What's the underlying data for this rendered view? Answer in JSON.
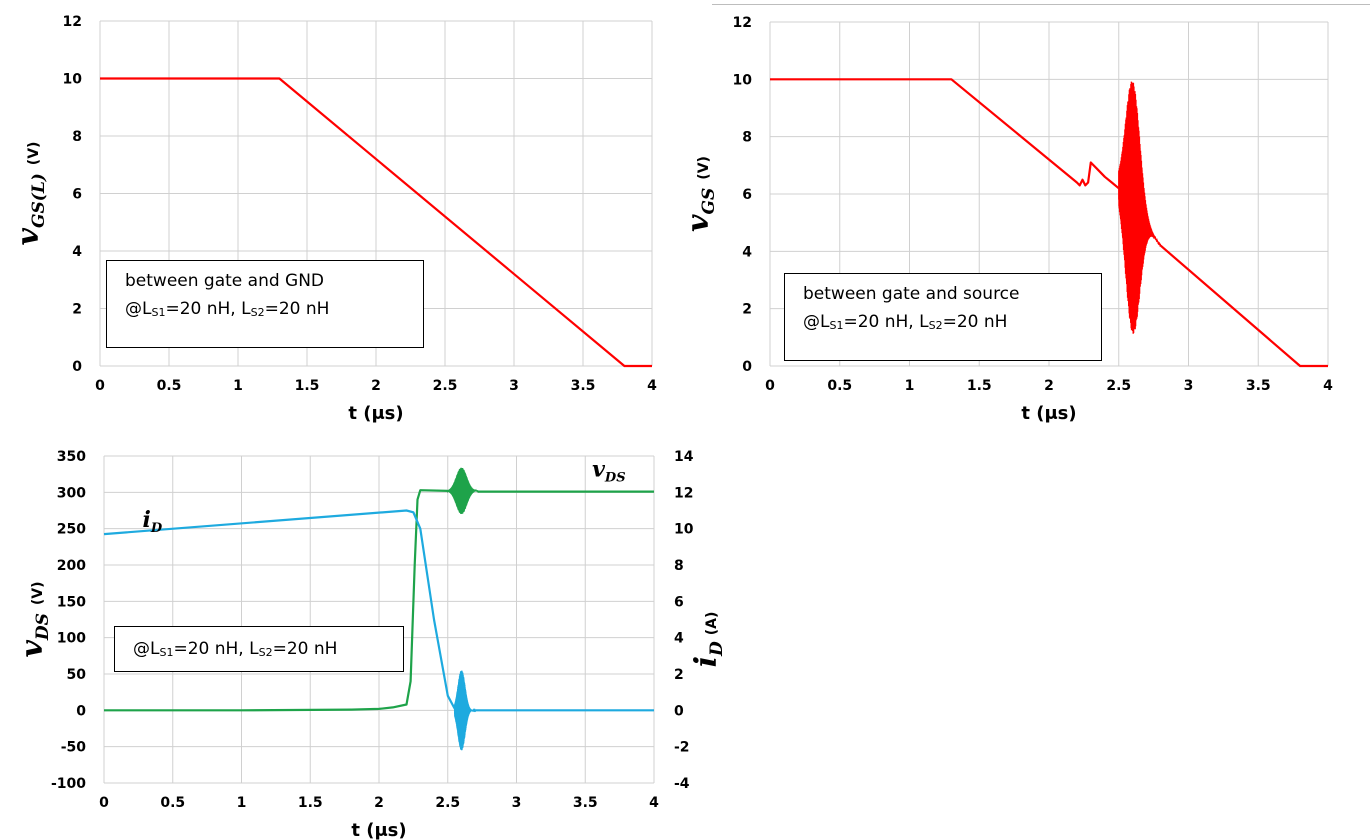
{
  "chart_data": [
    {
      "id": "vgs_l",
      "type": "line",
      "xlabel": "t (μs)",
      "ylabel": {
        "symbol": "v",
        "subscript": "GS(L)",
        "unit": "(V)"
      },
      "xlim": [
        0,
        4
      ],
      "ylim": [
        0,
        12
      ],
      "xticks": [
        "0",
        "0.5",
        "1",
        "1.5",
        "2",
        "2.5",
        "3",
        "3.5",
        "4"
      ],
      "yticks": [
        "0",
        "2",
        "4",
        "6",
        "8",
        "10",
        "12"
      ],
      "grid": true,
      "note": {
        "line1": "between gate and GND",
        "line2_prefix": "@L",
        "sub1": "S1",
        "mid": "=20 nH, L",
        "sub2": "S2",
        "suffix": "=20 nH"
      },
      "series": [
        {
          "color": "#ff0000",
          "x": [
            0,
            1.3,
            3.8,
            4.0
          ],
          "y": [
            10,
            10,
            0,
            0
          ]
        }
      ]
    },
    {
      "id": "vgs",
      "type": "line",
      "xlabel": "t (μs)",
      "ylabel": {
        "symbol": "v",
        "subscript": "GS",
        "unit": "(V)"
      },
      "xlim": [
        0,
        4
      ],
      "ylim": [
        0,
        12
      ],
      "xticks": [
        "0",
        "0.5",
        "1",
        "1.5",
        "2",
        "2.5",
        "3",
        "3.5",
        "4"
      ],
      "yticks": [
        "0",
        "2",
        "4",
        "6",
        "8",
        "10",
        "12"
      ],
      "grid": true,
      "note": {
        "line1": "between gate and source",
        "line2_prefix": "@L",
        "sub1": "S1",
        "mid": "=20 nH, L",
        "sub2": "S2",
        "suffix": "=20 nH"
      },
      "series": [
        {
          "color": "#ff0000",
          "x": [
            0,
            1.3,
            2.2,
            2.22,
            2.24,
            2.26,
            2.28,
            2.3,
            2.34,
            2.4,
            2.45,
            2.5
          ],
          "y": [
            10,
            10,
            6.4,
            6.3,
            6.5,
            6.3,
            6.4,
            7.1,
            6.9,
            6.6,
            6.4,
            6.2
          ]
        },
        {
          "color": "#ff0000",
          "oscillation": {
            "t_start": 2.5,
            "t_end": 2.8,
            "t_peak": 2.6,
            "amp_max": 4.4
          },
          "baseline_x": [
            2.5,
            2.8
          ],
          "baseline_y": [
            6.2,
            4.2
          ]
        },
        {
          "color": "#ff0000",
          "x": [
            2.8,
            3.8,
            4.0
          ],
          "y": [
            4.2,
            0,
            0
          ]
        }
      ]
    },
    {
      "id": "vds_id",
      "type": "line",
      "xlabel": "t (μs)",
      "ylabel": {
        "symbol": "v",
        "subscript": "DS",
        "unit": "(V)"
      },
      "y2label": {
        "symbol": "i",
        "subscript": "D",
        "unit": "(A)"
      },
      "xlim": [
        0,
        4
      ],
      "ylim": [
        -100,
        350
      ],
      "y2lim": [
        -4,
        14
      ],
      "xticks": [
        "0",
        "0.5",
        "1",
        "1.5",
        "2",
        "2.5",
        "3",
        "3.5",
        "4"
      ],
      "yticks": [
        "-100",
        "-50",
        "0",
        "50",
        "100",
        "150",
        "200",
        "250",
        "300",
        "350"
      ],
      "y2ticks": [
        "-4",
        "-2",
        "0",
        "2",
        "4",
        "6",
        "8",
        "10",
        "12",
        "14"
      ],
      "grid": true,
      "note": {
        "line1": "",
        "line2_prefix": "@L",
        "sub1": "S1",
        "mid": "=20 nH, L",
        "sub2": "S2",
        "suffix": "=20 nH"
      },
      "annotations": [
        {
          "symbol": "v",
          "subscript": "DS"
        },
        {
          "symbol": "i",
          "subscript": "D"
        }
      ],
      "series": [
        {
          "name": "vDS",
          "axis": "left",
          "color": "#1ea34a",
          "x": [
            0,
            1.0,
            1.8,
            2.0,
            2.1,
            2.2,
            2.23,
            2.26,
            2.28,
            2.3,
            2.5
          ],
          "y": [
            0,
            0,
            1,
            2,
            4,
            8,
            40,
            200,
            290,
            303,
            302
          ],
          "oscillation": {
            "t_start": 2.5,
            "t_end": 2.72,
            "t_peak": 2.6,
            "amp_max": 32,
            "base": 302
          },
          "tail_x": [
            2.72,
            4.0
          ],
          "tail_y": [
            301,
            301
          ]
        },
        {
          "name": "iD",
          "axis": "right",
          "color": "#1eaadf",
          "x": [
            0,
            2.2,
            2.25,
            2.3,
            2.4,
            2.5,
            2.55
          ],
          "y": [
            9.7,
            11.0,
            10.9,
            10.0,
            5.0,
            0.8,
            0.1
          ],
          "oscillation": {
            "t_start": 2.55,
            "t_end": 2.7,
            "t_peak": 2.6,
            "amp_max": 2.2,
            "base": 0
          },
          "tail_x": [
            2.7,
            4.0
          ],
          "tail_y": [
            0,
            0
          ]
        }
      ]
    }
  ]
}
